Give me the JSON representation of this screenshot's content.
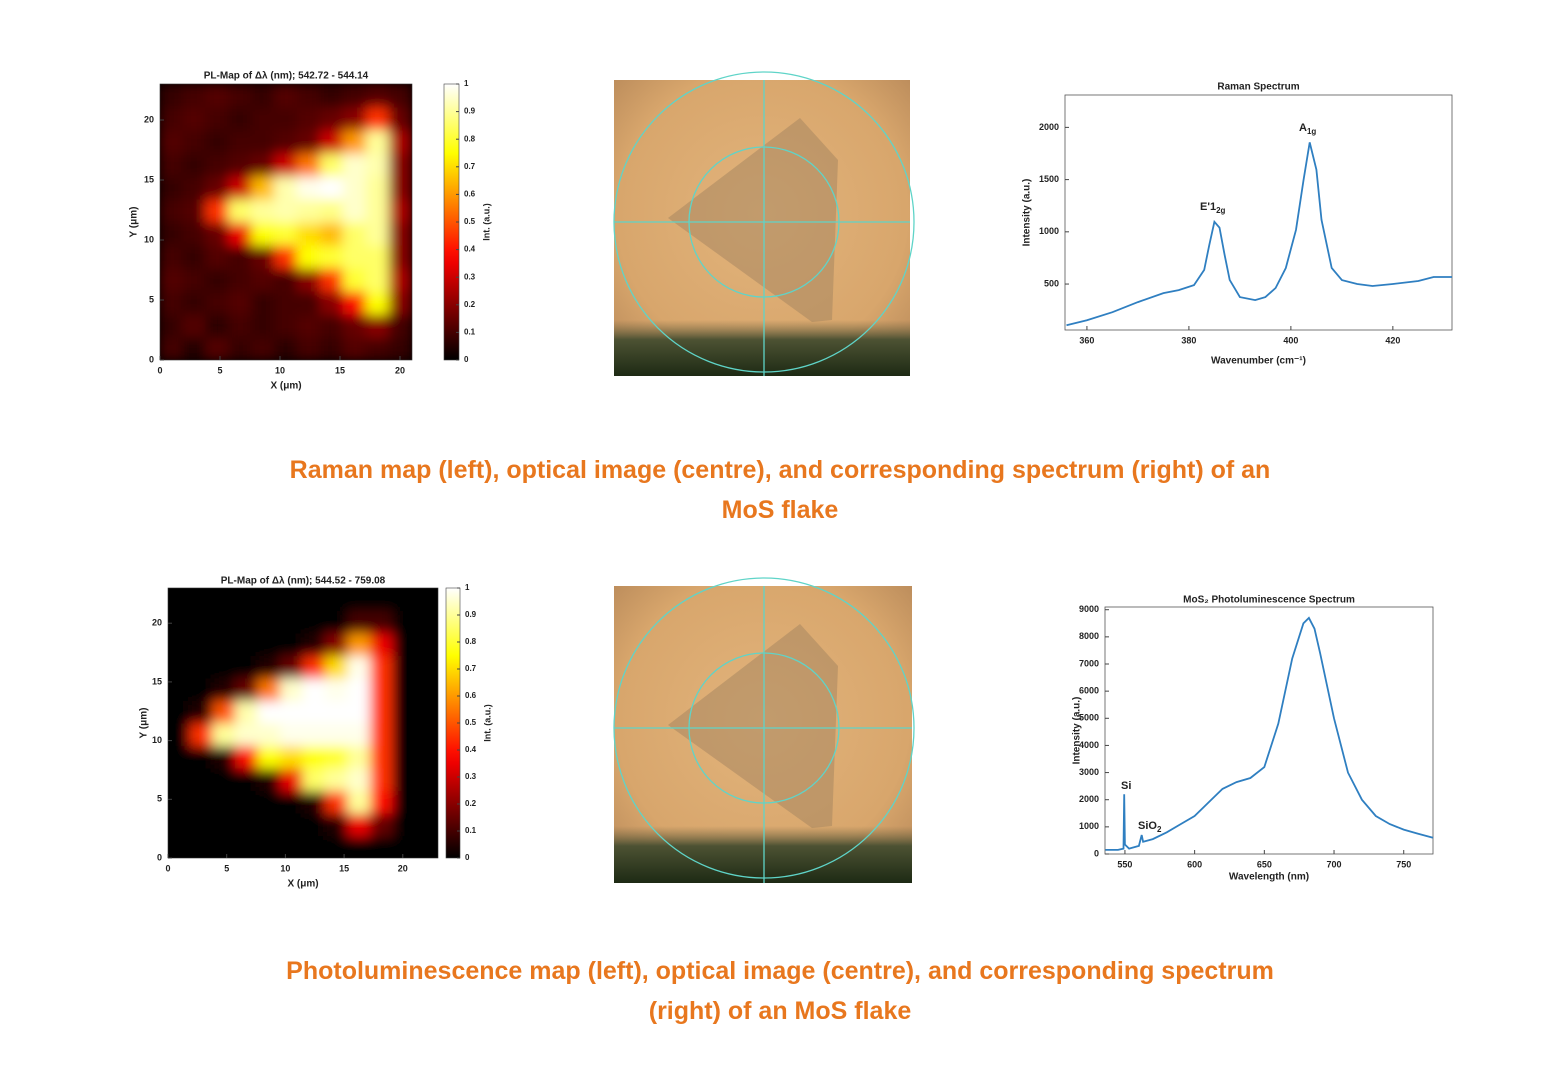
{
  "chart_data": [
    {
      "type": "heatmap",
      "title": "PL-Map of Δλ (nm); 542.72 - 544.14",
      "xlabel": "X (μm)",
      "ylabel": "Y (μm)",
      "xlim": [
        0,
        21
      ],
      "ylim": [
        0,
        23
      ],
      "xticks": [
        0,
        5,
        10,
        15,
        20
      ],
      "yticks": [
        0,
        5,
        10,
        15,
        20
      ],
      "colormap": "hot",
      "z": [
        [
          0.1,
          0.05,
          0.12,
          0.08,
          0.1,
          0.06,
          0.1,
          0.08,
          0.12,
          0.1,
          0.08
        ],
        [
          0.08,
          0.12,
          0.06,
          0.1,
          0.08,
          0.1,
          0.12,
          0.1,
          0.15,
          0.2,
          0.1
        ],
        [
          0.1,
          0.08,
          0.1,
          0.12,
          0.08,
          0.1,
          0.1,
          0.2,
          0.4,
          0.75,
          0.2
        ],
        [
          0.12,
          0.1,
          0.08,
          0.1,
          0.12,
          0.1,
          0.2,
          0.45,
          0.8,
          0.85,
          0.25
        ],
        [
          0.1,
          0.08,
          0.12,
          0.1,
          0.15,
          0.45,
          0.75,
          0.8,
          0.85,
          0.85,
          0.2
        ],
        [
          0.08,
          0.1,
          0.15,
          0.35,
          0.75,
          0.8,
          0.7,
          0.65,
          0.85,
          0.9,
          0.2
        ],
        [
          0.1,
          0.12,
          0.45,
          0.85,
          0.9,
          0.92,
          0.9,
          0.88,
          0.95,
          0.9,
          0.25
        ],
        [
          0.08,
          0.1,
          0.15,
          0.3,
          0.65,
          0.92,
          0.98,
          1,
          0.95,
          0.9,
          0.2
        ],
        [
          0.1,
          0.08,
          0.1,
          0.12,
          0.15,
          0.3,
          0.55,
          0.85,
          0.95,
          0.92,
          0.2
        ],
        [
          0.12,
          0.1,
          0.08,
          0.1,
          0.1,
          0.12,
          0.15,
          0.3,
          0.6,
          0.9,
          0.25
        ],
        [
          0.1,
          0.12,
          0.1,
          0.08,
          0.1,
          0.1,
          0.12,
          0.15,
          0.2,
          0.45,
          0.15
        ],
        [
          0.08,
          0.1,
          0.12,
          0.1,
          0.08,
          0.12,
          0.1,
          0.08,
          0.1,
          0.12,
          0.1
        ]
      ],
      "colorbar": {
        "label": "Int. (a.u.)",
        "lim": [
          0,
          1
        ],
        "ticks": [
          0,
          0.1,
          0.2,
          0.3,
          0.4,
          0.5,
          0.6,
          0.7,
          0.8,
          0.9,
          1
        ]
      }
    },
    {
      "type": "heatmap",
      "title": "PL-Map of Δλ (nm); 544.52 - 759.08",
      "xlabel": "X (μm)",
      "ylabel": "Y (μm)",
      "xlim": [
        0,
        23
      ],
      "ylim": [
        0,
        23
      ],
      "xticks": [
        0,
        5,
        10,
        15,
        20
      ],
      "yticks": [
        0,
        5,
        10,
        15,
        20
      ],
      "colormap": "hot",
      "z": [
        [
          0,
          0,
          0,
          0,
          0,
          0,
          0,
          0,
          0,
          0,
          0,
          0
        ],
        [
          0,
          0,
          0,
          0,
          0,
          0,
          0,
          0.05,
          0.35,
          0.15,
          0,
          0
        ],
        [
          0,
          0,
          0,
          0,
          0,
          0,
          0.05,
          0.45,
          0.9,
          0.4,
          0,
          0
        ],
        [
          0,
          0,
          0,
          0,
          0.05,
          0.35,
          0.85,
          0.9,
          0.95,
          0.45,
          0,
          0
        ],
        [
          0,
          0,
          0.05,
          0.4,
          0.75,
          0.7,
          0.75,
          0.8,
          0.9,
          0.45,
          0,
          0
        ],
        [
          0,
          0.45,
          0.9,
          0.95,
          0.95,
          0.98,
          0.98,
          0.98,
          0.98,
          0.45,
          0,
          0
        ],
        [
          0,
          0.05,
          0.5,
          0.92,
          1,
          1,
          1,
          1,
          1,
          0.45,
          0,
          0
        ],
        [
          0,
          0,
          0.05,
          0.15,
          0.55,
          0.95,
          1,
          0.98,
          1,
          0.45,
          0,
          0
        ],
        [
          0,
          0,
          0,
          0,
          0.05,
          0.15,
          0.45,
          0.7,
          0.98,
          0.45,
          0,
          0
        ],
        [
          0,
          0,
          0,
          0,
          0,
          0,
          0.05,
          0.2,
          0.6,
          0.35,
          0,
          0
        ],
        [
          0,
          0,
          0,
          0,
          0,
          0,
          0,
          0,
          0.1,
          0.1,
          0,
          0
        ],
        [
          0,
          0,
          0,
          0,
          0,
          0,
          0,
          0,
          0,
          0,
          0,
          0
        ]
      ],
      "colorbar": {
        "label": "Int. (a.u.)",
        "lim": [
          0,
          1
        ],
        "ticks": [
          0,
          0.1,
          0.2,
          0.3,
          0.4,
          0.5,
          0.6,
          0.7,
          0.8,
          0.9,
          1
        ]
      }
    },
    {
      "type": "line",
      "title": "Raman Spectrum",
      "xlabel": "Wavenumber (cm⁻¹)",
      "ylabel": "Intensity (a.u.)",
      "xlim": [
        355.7,
        431.6
      ],
      "ylim": [
        60,
        2310
      ],
      "xticks": [
        360,
        380,
        400,
        420
      ],
      "yticks": [
        500,
        1000,
        1500,
        2000
      ],
      "color": "#2f7fc1",
      "x": [
        356,
        360,
        365,
        370,
        375,
        378,
        381,
        383,
        384,
        385,
        386,
        387,
        388,
        390,
        393,
        395,
        397,
        399,
        401,
        402.5,
        403.7,
        405,
        406,
        408,
        410,
        413,
        416,
        420,
        425,
        428,
        431.6
      ],
      "values": [
        106,
        154,
        230,
        327,
        413,
        442,
        490,
        635,
        875,
        1096,
        1040,
        780,
        540,
        375,
        346,
        375,
        462,
        654,
        1019,
        1500,
        1856,
        1596,
        1115,
        654,
        538,
        500,
        481,
        500,
        529,
        567,
        567
      ],
      "annotations": [
        {
          "text": "E'1",
          "sub": "2g"
        },
        {
          "text": "A",
          "sub": "1g"
        }
      ]
    },
    {
      "type": "line",
      "title": "MoS₂ Photoluminescence Spectrum",
      "xlabel": "Wavelength (nm)",
      "ylabel": "Intensity (a.u.)",
      "xlim": [
        535.7,
        771
      ],
      "ylim": [
        0,
        9100
      ],
      "xticks": [
        550,
        600,
        650,
        700,
        750
      ],
      "yticks": [
        0,
        1000,
        2000,
        3000,
        4000,
        5000,
        6000,
        7000,
        8000,
        9000
      ],
      "color": "#2f7fc1",
      "x": [
        536,
        545,
        549,
        549.5,
        550,
        553,
        560,
        562,
        563,
        570,
        580,
        590,
        600,
        610,
        620,
        630,
        640,
        650,
        660,
        670,
        678,
        682,
        686,
        690,
        700,
        710,
        720,
        730,
        740,
        750,
        760,
        771
      ],
      "values": [
        150,
        150,
        200,
        2200,
        350,
        200,
        300,
        700,
        450,
        550,
        800,
        1100,
        1400,
        1900,
        2400,
        2650,
        2800,
        3200,
        4800,
        7200,
        8500,
        8700,
        8300,
        7400,
        5000,
        3000,
        2000,
        1400,
        1100,
        900,
        750,
        600
      ],
      "annotations": [
        {
          "text": "Si"
        },
        {
          "text": "SiO",
          "sub": "2"
        }
      ]
    }
  ],
  "captions": [
    [
      "Raman map (left), optical image (centre), and corresponding spectrum (right) of an",
      "MoS flake"
    ],
    [
      "Photoluminescence map (left), optical image (centre), and corresponding spectrum",
      "(right) of an MoS flake"
    ]
  ]
}
